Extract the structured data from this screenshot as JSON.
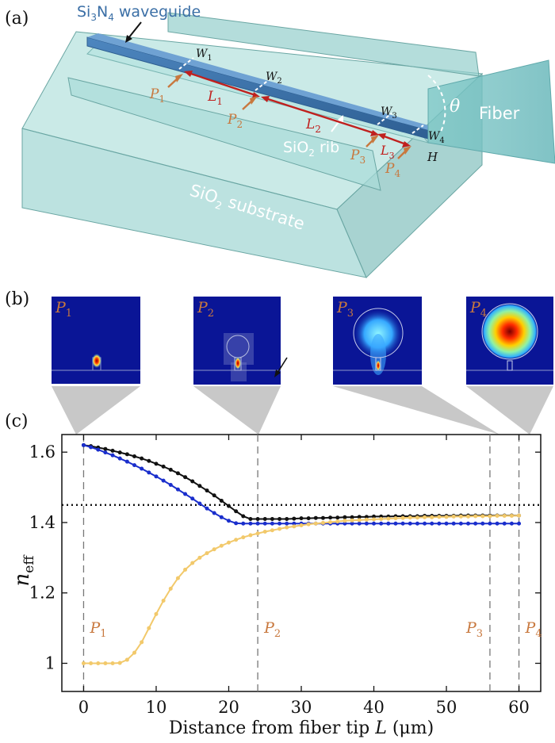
{
  "panels": {
    "a": {
      "label": "(a)",
      "waveguide": {
        "pre": "Si",
        "s1": "3",
        "mid": "N",
        "s2": "4",
        "post": " waveguide"
      },
      "fiber": "Fiber",
      "angle": "θ",
      "rib": {
        "pre": "SiO",
        "sub": "2",
        "post": " rib"
      },
      "substrate": {
        "pre": "SiO",
        "sub": "2",
        "post": " substrate"
      },
      "widths": [
        "W",
        "W",
        "W",
        "W"
      ],
      "width_subs": [
        "1",
        "2",
        "3",
        "4"
      ],
      "points": [
        "P",
        "P",
        "P",
        "P"
      ],
      "point_subs": [
        "1",
        "2",
        "3",
        "4"
      ],
      "lengths": [
        "L",
        "L",
        "L"
      ],
      "length_subs": [
        "1",
        "2",
        "3"
      ],
      "height": "H"
    },
    "b": {
      "label": "(b)",
      "mode_labels": [
        {
          "main": "P",
          "sub": "1"
        },
        {
          "main": "P",
          "sub": "2"
        },
        {
          "main": "P",
          "sub": "3"
        },
        {
          "main": "P",
          "sub": "4"
        }
      ]
    },
    "c": {
      "label": "(c)"
    }
  },
  "colors": {
    "waveguide": "#3b6fa6",
    "silica": "#8fd0cc",
    "point_label": "#c8783e",
    "length_arrow": "#c0201e",
    "mode_background": "#0a1596",
    "series_black": "#111111",
    "series_blue": "#1a2ecc",
    "series_yellow": "#f2c96b"
  },
  "chart_data": {
    "type": "line",
    "xlabel": {
      "text": "Distance from fiber tip ",
      "var": "L",
      "unit": " (μm)"
    },
    "ylabel": {
      "main": "n",
      "sub": "eff"
    },
    "xlim": [
      -3,
      63
    ],
    "ylim": [
      0.92,
      1.65
    ],
    "xticks": [
      0,
      10,
      20,
      30,
      40,
      50,
      60
    ],
    "yticks": [
      1,
      1.2,
      1.4,
      1.6
    ],
    "ytick_labels": [
      "1",
      "1.2",
      "1.4",
      "1.6"
    ],
    "hline": 1.45,
    "vlines": [
      0,
      24,
      56,
      60
    ],
    "vline_labels": [
      {
        "main": "P",
        "sub": "1",
        "x": 0
      },
      {
        "main": "P",
        "sub": "2",
        "x": 24
      },
      {
        "main": "P",
        "sub": "3",
        "x": 56
      },
      {
        "main": "P",
        "sub": "4",
        "x": 60
      }
    ],
    "x": [
      0,
      1,
      2,
      3,
      4,
      5,
      6,
      7,
      8,
      9,
      10,
      11,
      12,
      13,
      14,
      15,
      16,
      17,
      18,
      19,
      20,
      21,
      22,
      23,
      24,
      25,
      26,
      27,
      28,
      29,
      30,
      31,
      32,
      33,
      34,
      35,
      36,
      37,
      38,
      39,
      40,
      41,
      42,
      43,
      44,
      45,
      46,
      47,
      48,
      49,
      50,
      51,
      52,
      53,
      54,
      55,
      56,
      57,
      58,
      59,
      60
    ],
    "series": [
      {
        "color": "#111111",
        "values": [
          1.62,
          1.617,
          1.613,
          1.609,
          1.604,
          1.599,
          1.594,
          1.588,
          1.582,
          1.575,
          1.567,
          1.559,
          1.55,
          1.54,
          1.529,
          1.517,
          1.504,
          1.491,
          1.477,
          1.462,
          1.447,
          1.432,
          1.418,
          1.41,
          1.41,
          1.41,
          1.41,
          1.41,
          1.41,
          1.411,
          1.412,
          1.412,
          1.413,
          1.413,
          1.414,
          1.414,
          1.415,
          1.415,
          1.416,
          1.416,
          1.417,
          1.417,
          1.417,
          1.418,
          1.418,
          1.418,
          1.418,
          1.419,
          1.419,
          1.419,
          1.419,
          1.419,
          1.42,
          1.42,
          1.42,
          1.42,
          1.42,
          1.42,
          1.42,
          1.42,
          1.42
        ]
      },
      {
        "color": "#1a2ecc",
        "values": [
          1.62,
          1.614,
          1.607,
          1.599,
          1.591,
          1.582,
          1.573,
          1.563,
          1.553,
          1.542,
          1.531,
          1.519,
          1.507,
          1.494,
          1.481,
          1.468,
          1.454,
          1.44,
          1.427,
          1.415,
          1.405,
          1.398,
          1.397,
          1.397,
          1.397,
          1.397,
          1.397,
          1.397,
          1.397,
          1.397,
          1.397,
          1.397,
          1.397,
          1.397,
          1.397,
          1.397,
          1.397,
          1.397,
          1.397,
          1.397,
          1.397,
          1.397,
          1.397,
          1.397,
          1.397,
          1.397,
          1.397,
          1.397,
          1.397,
          1.397,
          1.397,
          1.397,
          1.397,
          1.397,
          1.397,
          1.397,
          1.397,
          1.397,
          1.397,
          1.397,
          1.397
        ]
      },
      {
        "color": "#f2c96b",
        "values": [
          1,
          1,
          1,
          1,
          1,
          1.001,
          1.01,
          1.03,
          1.06,
          1.1,
          1.14,
          1.178,
          1.212,
          1.242,
          1.266,
          1.285,
          1.3,
          1.313,
          1.324,
          1.334,
          1.343,
          1.351,
          1.358,
          1.364,
          1.369,
          1.374,
          1.378,
          1.382,
          1.386,
          1.389,
          1.392,
          1.395,
          1.397,
          1.399,
          1.401,
          1.403,
          1.405,
          1.406,
          1.407,
          1.408,
          1.409,
          1.41,
          1.411,
          1.412,
          1.413,
          1.414,
          1.414,
          1.415,
          1.415,
          1.416,
          1.416,
          1.417,
          1.417,
          1.417,
          1.418,
          1.418,
          1.418,
          1.419,
          1.419,
          1.419,
          1.42
        ]
      }
    ]
  }
}
